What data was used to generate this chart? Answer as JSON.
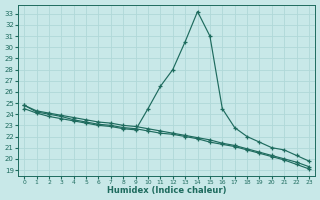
{
  "xlabel": "Humidex (Indice chaleur)",
  "xlim": [
    -0.5,
    23.5
  ],
  "ylim": [
    18.5,
    33.8
  ],
  "yticks": [
    19,
    20,
    21,
    22,
    23,
    24,
    25,
    26,
    27,
    28,
    29,
    30,
    31,
    32,
    33
  ],
  "xticks": [
    0,
    1,
    2,
    3,
    4,
    5,
    6,
    7,
    8,
    9,
    10,
    11,
    12,
    13,
    14,
    15,
    16,
    17,
    18,
    19,
    20,
    21,
    22,
    23
  ],
  "background_color": "#c8e8e8",
  "grid_color": "#b0d8d8",
  "line_color": "#1e6b5e",
  "curve1_y": [
    24.5,
    24.1,
    23.8,
    23.6,
    23.4,
    23.2,
    23.0,
    22.9,
    22.7,
    22.6,
    24.5,
    26.5,
    28.0,
    30.5,
    33.2,
    31.0,
    24.5,
    22.8,
    22.0,
    21.5,
    21.0,
    20.8,
    20.3,
    19.8
  ],
  "curve2_y": [
    24.8,
    24.2,
    24.0,
    23.8,
    23.5,
    23.3,
    23.1,
    23.0,
    22.8,
    22.7,
    22.5,
    22.3,
    22.2,
    22.0,
    21.8,
    21.5,
    21.3,
    21.1,
    20.8,
    20.5,
    20.2,
    19.9,
    19.5,
    19.1
  ],
  "curve3_y": [
    24.8,
    24.3,
    24.1,
    23.9,
    23.7,
    23.5,
    23.3,
    23.2,
    23.0,
    22.9,
    22.7,
    22.5,
    22.3,
    22.1,
    21.9,
    21.7,
    21.4,
    21.2,
    20.9,
    20.6,
    20.3,
    20.0,
    19.7,
    19.3
  ]
}
